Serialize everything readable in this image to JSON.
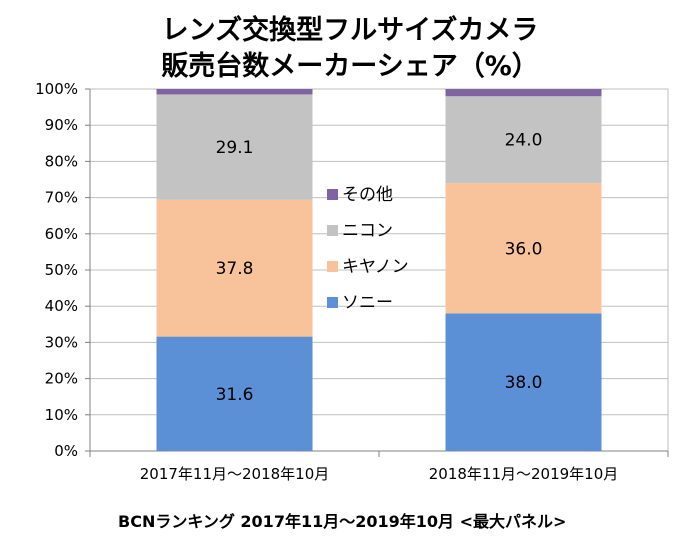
{
  "chart_data": {
    "type": "bar",
    "stacked": true,
    "title": "レンズ交換型フルサイズカメラ",
    "subtitle": "販売台数メーカーシェア（%）",
    "categories": [
      "2017年11月～2018年10月",
      "2018年11月～2019年10月"
    ],
    "series": [
      {
        "name": "ソニー",
        "values": [
          31.6,
          38.0
        ],
        "color": "#5B8FD6",
        "labels": [
          "31.6",
          "38.0"
        ]
      },
      {
        "name": "キヤノン",
        "values": [
          37.8,
          36.0
        ],
        "color": "#F8C39A",
        "labels": [
          "37.8",
          "36.0"
        ]
      },
      {
        "name": "ニコン",
        "values": [
          29.1,
          24.0
        ],
        "color": "#C3C3C3",
        "labels": [
          "29.1",
          "24.0"
        ]
      },
      {
        "name": "その他",
        "values": [
          1.5,
          2.0
        ],
        "color": "#8064A2",
        "labels": [
          "",
          ""
        ]
      }
    ],
    "ylim": [
      0,
      100
    ],
    "yticks": [
      "0%",
      "10%",
      "20%",
      "30%",
      "40%",
      "50%",
      "60%",
      "70%",
      "80%",
      "90%",
      "100%"
    ],
    "grid": true,
    "legend": "center",
    "legend_order": [
      "その他",
      "ニコン",
      "キヤノン",
      "ソニー"
    ]
  },
  "source": "BCNランキング 2017年11月～2019年10月 <最大パネル>"
}
